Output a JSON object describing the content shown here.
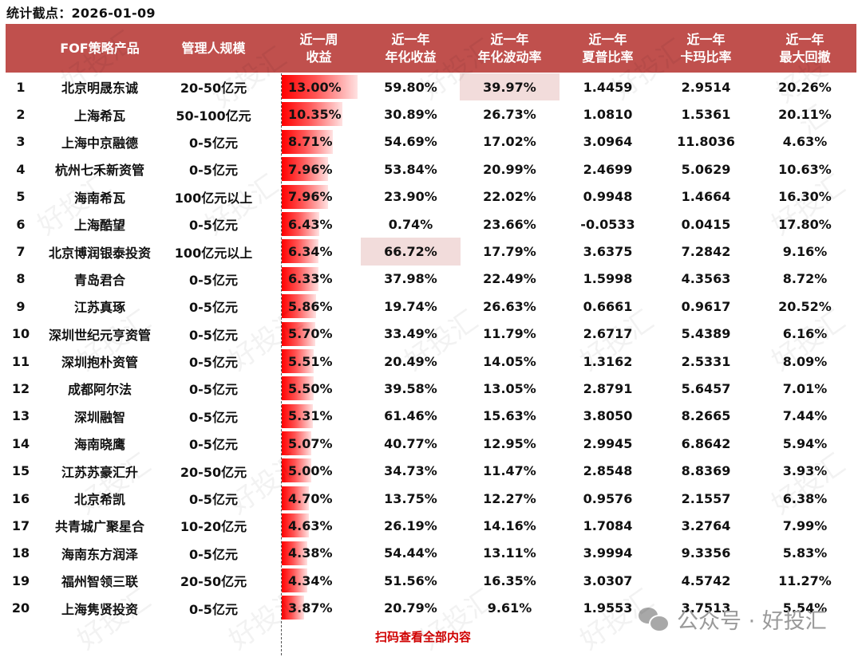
{
  "stat_date": "统计截点：2026-01-09",
  "colors": {
    "header_bg": "#C0504D",
    "header_text": "#FFFFFF",
    "bar": "#FF0000",
    "highlight": "#F2DCDB",
    "footer_text": "#D00000"
  },
  "header": {
    "rank": "",
    "name": "FOF策略产品",
    "scale": "管理人规模",
    "week_return": [
      "近一周",
      "收益"
    ],
    "annual_return": [
      "近一年",
      "年化收益"
    ],
    "annual_vol": [
      "近一年",
      "年化波动率"
    ],
    "sharpe": [
      "近一年",
      "夏普比率"
    ],
    "calmar": [
      "近一年",
      "卡玛比率"
    ],
    "max_drawdown": [
      "近一年",
      "最大回撤"
    ]
  },
  "rows": [
    {
      "rank": "1",
      "name": "北京明晟东诚",
      "scale": "20-50亿元",
      "week": "13.00%",
      "week_val": 13.0,
      "annual": "59.80%",
      "vol": "39.97%",
      "sharpe": "1.4459",
      "calmar": "2.9514",
      "mdd": "20.26%"
    },
    {
      "rank": "2",
      "name": "上海希瓦",
      "scale": "50-100亿元",
      "week": "10.35%",
      "week_val": 10.35,
      "annual": "30.89%",
      "vol": "26.73%",
      "sharpe": "1.0810",
      "calmar": "1.5361",
      "mdd": "20.11%"
    },
    {
      "rank": "3",
      "name": "上海中京融德",
      "scale": "0-5亿元",
      "week": "8.71%",
      "week_val": 8.71,
      "annual": "54.69%",
      "vol": "17.02%",
      "sharpe": "3.0964",
      "calmar": "11.8036",
      "mdd": "4.63%"
    },
    {
      "rank": "4",
      "name": "杭州七禾新资管",
      "scale": "0-5亿元",
      "week": "7.96%",
      "week_val": 7.96,
      "annual": "53.84%",
      "vol": "20.99%",
      "sharpe": "2.4699",
      "calmar": "5.0629",
      "mdd": "10.63%"
    },
    {
      "rank": "5",
      "name": "海南希瓦",
      "scale": "100亿元以上",
      "week": "7.96%",
      "week_val": 7.96,
      "annual": "23.90%",
      "vol": "22.02%",
      "sharpe": "0.9948",
      "calmar": "1.4664",
      "mdd": "16.30%"
    },
    {
      "rank": "6",
      "name": "上海酷望",
      "scale": "0-5亿元",
      "week": "6.43%",
      "week_val": 6.43,
      "annual": "0.74%",
      "vol": "23.66%",
      "sharpe": "-0.0533",
      "calmar": "0.0415",
      "mdd": "17.80%"
    },
    {
      "rank": "7",
      "name": "北京博润银泰投资",
      "scale": "100亿元以上",
      "week": "6.34%",
      "week_val": 6.34,
      "annual": "66.72%",
      "vol": "17.79%",
      "sharpe": "3.6375",
      "calmar": "7.2842",
      "mdd": "9.16%"
    },
    {
      "rank": "8",
      "name": "青岛君合",
      "scale": "0-5亿元",
      "week": "6.33%",
      "week_val": 6.33,
      "annual": "37.98%",
      "vol": "22.49%",
      "sharpe": "1.5998",
      "calmar": "4.3563",
      "mdd": "8.72%"
    },
    {
      "rank": "9",
      "name": "江苏真琢",
      "scale": "0-5亿元",
      "week": "5.86%",
      "week_val": 5.86,
      "annual": "19.74%",
      "vol": "26.63%",
      "sharpe": "0.6661",
      "calmar": "0.9617",
      "mdd": "20.52%"
    },
    {
      "rank": "10",
      "name": "深圳世纪元亨资管",
      "scale": "0-5亿元",
      "week": "5.70%",
      "week_val": 5.7,
      "annual": "33.49%",
      "vol": "11.79%",
      "sharpe": "2.6717",
      "calmar": "5.4389",
      "mdd": "6.16%"
    },
    {
      "rank": "11",
      "name": "深圳抱朴资管",
      "scale": "0-5亿元",
      "week": "5.51%",
      "week_val": 5.51,
      "annual": "20.49%",
      "vol": "14.05%",
      "sharpe": "1.3162",
      "calmar": "2.5331",
      "mdd": "8.09%"
    },
    {
      "rank": "12",
      "name": "成都阿尔法",
      "scale": "0-5亿元",
      "week": "5.50%",
      "week_val": 5.5,
      "annual": "39.58%",
      "vol": "13.05%",
      "sharpe": "2.8791",
      "calmar": "5.6457",
      "mdd": "7.01%"
    },
    {
      "rank": "13",
      "name": "深圳融智",
      "scale": "0-5亿元",
      "week": "5.31%",
      "week_val": 5.31,
      "annual": "61.46%",
      "vol": "15.63%",
      "sharpe": "3.8050",
      "calmar": "8.2665",
      "mdd": "7.44%"
    },
    {
      "rank": "14",
      "name": "海南晓鹰",
      "scale": "0-5亿元",
      "week": "5.07%",
      "week_val": 5.07,
      "annual": "40.77%",
      "vol": "12.95%",
      "sharpe": "2.9945",
      "calmar": "6.8642",
      "mdd": "5.94%"
    },
    {
      "rank": "15",
      "name": "江苏苏豪汇升",
      "scale": "20-50亿元",
      "week": "5.00%",
      "week_val": 5.0,
      "annual": "34.73%",
      "vol": "11.47%",
      "sharpe": "2.8548",
      "calmar": "8.8369",
      "mdd": "3.93%"
    },
    {
      "rank": "16",
      "name": "北京希凯",
      "scale": "0-5亿元",
      "week": "4.70%",
      "week_val": 4.7,
      "annual": "13.75%",
      "vol": "12.27%",
      "sharpe": "0.9576",
      "calmar": "2.1557",
      "mdd": "6.38%"
    },
    {
      "rank": "17",
      "name": "共青城广聚星合",
      "scale": "10-20亿元",
      "week": "4.63%",
      "week_val": 4.63,
      "annual": "26.19%",
      "vol": "14.16%",
      "sharpe": "1.7084",
      "calmar": "3.2764",
      "mdd": "7.99%"
    },
    {
      "rank": "18",
      "name": "海南东方润泽",
      "scale": "0-5亿元",
      "week": "4.38%",
      "week_val": 4.38,
      "annual": "54.44%",
      "vol": "13.11%",
      "sharpe": "3.9994",
      "calmar": "9.3356",
      "mdd": "5.83%"
    },
    {
      "rank": "19",
      "name": "福州智领三联",
      "scale": "20-50亿元",
      "week": "4.34%",
      "week_val": 4.34,
      "annual": "51.56%",
      "vol": "16.35%",
      "sharpe": "3.0307",
      "calmar": "4.5742",
      "mdd": "11.27%"
    },
    {
      "rank": "20",
      "name": "上海隽贤投资",
      "scale": "0-5亿元",
      "week": "3.87%",
      "week_val": 3.87,
      "annual": "20.79%",
      "vol": "9.61%",
      "sharpe": "1.9553",
      "calmar": "3.7513",
      "mdd": "5.54%"
    }
  ],
  "highlights": {
    "max_annual_row": 7,
    "max_vol_row": 1
  },
  "footer": {
    "cta": "扫码查看全部内容"
  },
  "watermark": {
    "brand": "公众号 · 好投汇",
    "tile": "好投汇",
    "icon": "wechat-icon"
  }
}
